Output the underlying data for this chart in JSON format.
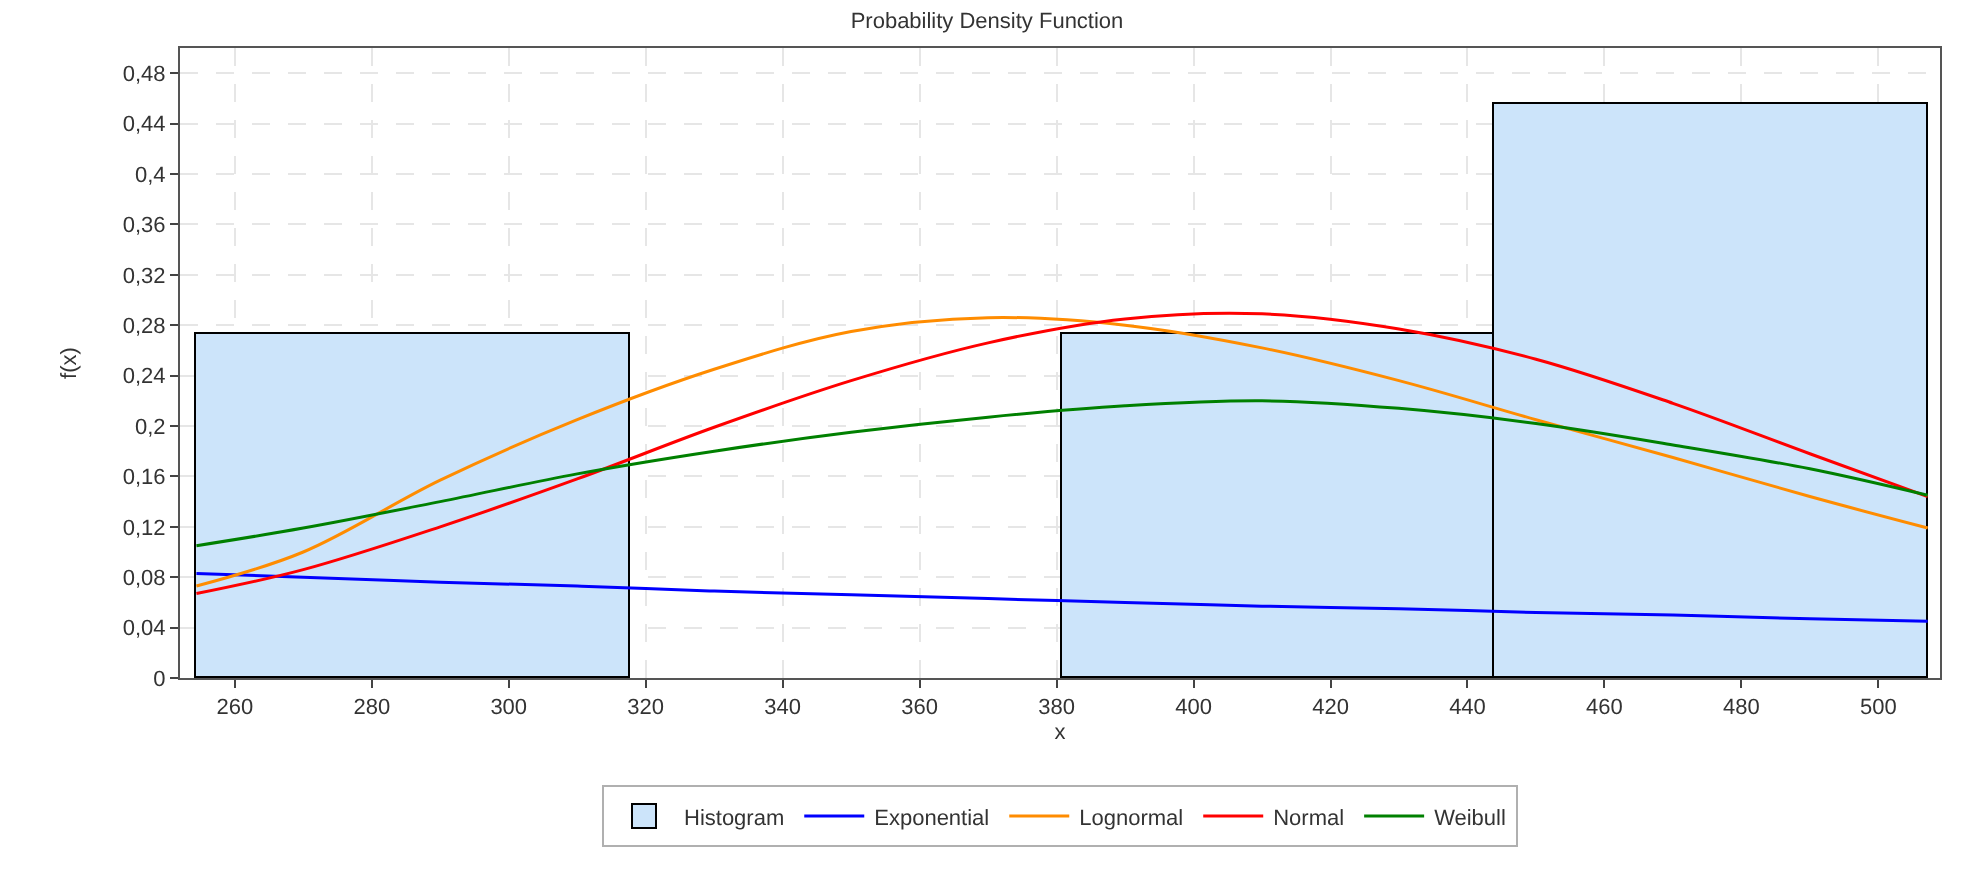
{
  "chart_data": {
    "type": "histogram",
    "title": "Probability Density Function",
    "xlabel": "x",
    "ylabel": "f(x)",
    "xlim": [
      252,
      509
    ],
    "xticks": [
      260,
      280,
      300,
      320,
      340,
      360,
      380,
      400,
      420,
      440,
      460,
      480,
      500
    ],
    "ylim": [
      0,
      0.5
    ],
    "yticks": [
      0,
      {
        "value": 0.04,
        "label": "0,04"
      },
      {
        "value": 0.08,
        "label": "0,08"
      },
      {
        "value": 0.12,
        "label": "0,12"
      },
      {
        "value": 0.16,
        "label": "0,16"
      },
      {
        "value": 0.2,
        "label": "0,2"
      },
      {
        "value": 0.24,
        "label": "0,24"
      },
      {
        "value": 0.28,
        "label": "0,28"
      },
      {
        "value": 0.32,
        "label": "0,32"
      },
      {
        "value": 0.36,
        "label": "0,36"
      },
      {
        "value": 0.4,
        "label": "0,4"
      },
      {
        "value": 0.44,
        "label": "0,44"
      },
      {
        "value": 0.48,
        "label": "0,48"
      }
    ],
    "grid": true,
    "legend": "bottom",
    "line_style": "solid",
    "marker": "none",
    "series": [
      {
        "name": "Histogram",
        "color": "#cce4fa",
        "bins": [
          254.4,
          317.6,
          380.8,
          444.0,
          507.2
        ],
        "values": [
          0.273,
          0,
          0.273,
          0.455
        ]
      },
      {
        "name": "Exponential",
        "type": "line",
        "color": "#0000ff",
        "x": [
          254.4,
          270,
          290,
          310,
          330,
          350,
          370,
          390,
          410,
          430,
          450,
          470,
          490,
          507.2
        ],
        "values": [
          0.083,
          0.08,
          0.076,
          0.073,
          0.069,
          0.066,
          0.063,
          0.06,
          0.057,
          0.055,
          0.052,
          0.05,
          0.047,
          0.045
        ]
      },
      {
        "name": "Lognormal",
        "type": "line",
        "color": "#ff8c00",
        "x": [
          254.4,
          270,
          290,
          310,
          330,
          350,
          370,
          390,
          410,
          430,
          450,
          470,
          490,
          507.2
        ],
        "values": [
          0.073,
          0.1,
          0.157,
          0.205,
          0.245,
          0.275,
          0.286,
          0.28,
          0.262,
          0.236,
          0.205,
          0.175,
          0.144,
          0.119
        ]
      },
      {
        "name": "Normal",
        "type": "line",
        "color": "#ff0000",
        "x": [
          254.4,
          270,
          290,
          310,
          330,
          350,
          370,
          390,
          410,
          430,
          450,
          470,
          490,
          507.2
        ],
        "values": [
          0.067,
          0.086,
          0.12,
          0.158,
          0.199,
          0.236,
          0.266,
          0.285,
          0.289,
          0.277,
          0.253,
          0.218,
          0.178,
          0.144
        ]
      },
      {
        "name": "Weibull",
        "type": "line",
        "color": "#008000",
        "x": [
          254.4,
          270,
          290,
          310,
          330,
          350,
          370,
          390,
          410,
          430,
          450,
          470,
          490,
          507.2
        ],
        "values": [
          0.105,
          0.119,
          0.14,
          0.162,
          0.18,
          0.195,
          0.207,
          0.216,
          0.22,
          0.214,
          0.202,
          0.185,
          0.166,
          0.145
        ]
      }
    ]
  }
}
